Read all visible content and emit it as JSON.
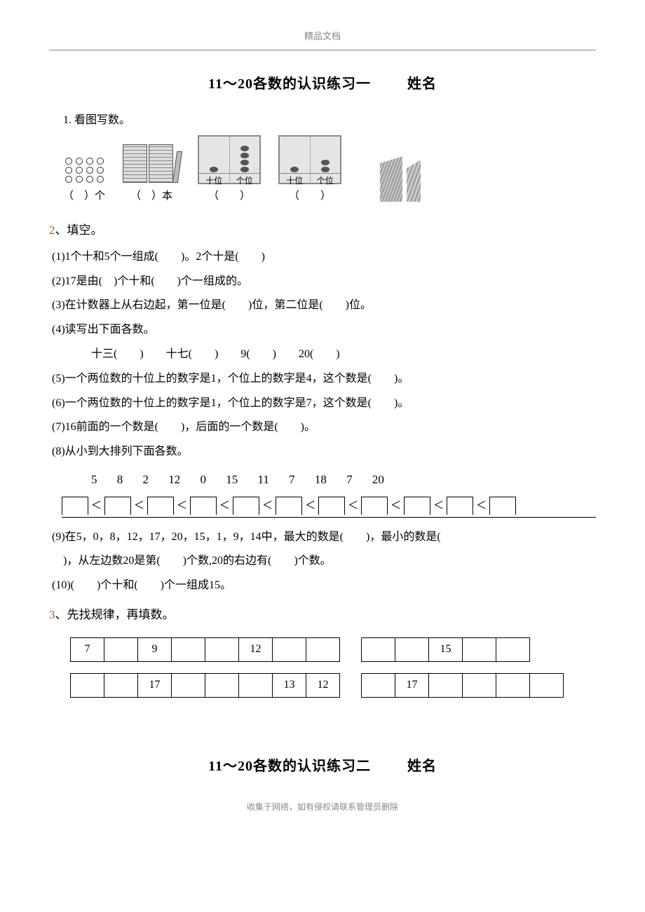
{
  "header": {
    "label": "精品文档"
  },
  "title1": {
    "main": "11～20各数的认识练习一",
    "name_label": "姓名"
  },
  "q1": {
    "heading": "1. 看图写数。",
    "item1_caption": "（　）个",
    "item2_caption": "（　）本",
    "digit_tens": "十位",
    "digit_ones": "个位",
    "item3_caption": "（　　）",
    "item4_caption": "（　　）",
    "item5_caption": ""
  },
  "q2": {
    "heading_num": "2",
    "heading_text": "、填空。",
    "line1": "(1)1个十和5个一组成(　　)。2个十是(　　)",
    "line2": "(2)17是由(　)个十和(　　)个一组成的。",
    "line3": "(3)在计数器上从右边起，第一位是(　　)位，第二位是(　　)位。",
    "line4": "(4)读写出下面各数。",
    "line4_sub": "十三(　　)　　十七(　　)　　9(　　)　　20(　　)",
    "line5": "(5)一个两位数的十位上的数字是1，个位上的数字是4，这个数是(　　)。",
    "line6": "(6)一个两位数的十位上的数字是1，个位上的数字是7，这个数是(　　)。",
    "line7": "(7)16前面的一个数是(　　)，后面的一个数是(　　)。",
    "line8": "(8)从小到大排列下面各数。",
    "sort_numbers": "5 8 2 12 0 15 11 7 18 7 20",
    "line9a": "(9)在5，0，8，12，17，20，15，1，9，14中，最大的数是(　　)，最小的数是(",
    "line9b": "　)，从左边数20是第(　　)个数,20的右边有(　　)个数。",
    "line10": "(10)(　　)个十和(　　)个一组成15。"
  },
  "q3": {
    "heading_num": "3",
    "heading_text": "、先找规律，再填数。",
    "table1": [
      "7",
      "",
      "9",
      "",
      "",
      "12",
      "",
      ""
    ],
    "table2": [
      "",
      "",
      "15",
      "",
      ""
    ],
    "table3": [
      "",
      "",
      "17",
      "",
      "",
      "",
      "13",
      "12"
    ],
    "table4": [
      "",
      "17",
      "",
      "",
      "",
      ""
    ]
  },
  "title2": {
    "main": "11～20各数的认识练习二",
    "name_label": "姓名"
  },
  "footer": {
    "note": "收集于网络，如有侵权请联系管理员删除"
  },
  "colors": {
    "section_number": "#b85a2e",
    "text": "#000000",
    "muted": "#888888"
  }
}
